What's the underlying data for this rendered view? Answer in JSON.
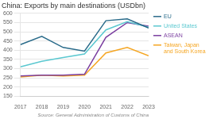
{
  "chart_data": {
    "type": "line",
    "title": "China: Exports by main destinations (USDbn)",
    "annotations": [
      "Source: General Administration of Customs of China"
    ],
    "x": [
      2017,
      2018,
      2019,
      2020,
      2021,
      2022,
      2023
    ],
    "series": [
      {
        "name": "EU",
        "color": "#2a6b8a",
        "values": [
          430,
          475,
          415,
          395,
          560,
          570,
          520
        ]
      },
      {
        "name": "United States",
        "color": "#5bc8d0",
        "values": [
          310,
          340,
          360,
          380,
          510,
          555,
          525
        ]
      },
      {
        "name": "ASEAN",
        "color": "#7b3fa0",
        "values": [
          260,
          265,
          265,
          270,
          470,
          550,
          530
        ]
      },
      {
        "name": "Taiwan, Japan\nand South Korea",
        "color": "#f5a623",
        "values": [
          255,
          265,
          260,
          265,
          385,
          415,
          370
        ]
      }
    ],
    "xlim": [
      2017,
      2023
    ],
    "xticks": [
      2017,
      2018,
      2019,
      2020,
      2021,
      2022,
      2023
    ],
    "ylim": [
      150,
      600
    ],
    "yticks": [
      150,
      200,
      250,
      300,
      350,
      400,
      450,
      500,
      550,
      600
    ],
    "grid": "y",
    "legend": "right"
  }
}
